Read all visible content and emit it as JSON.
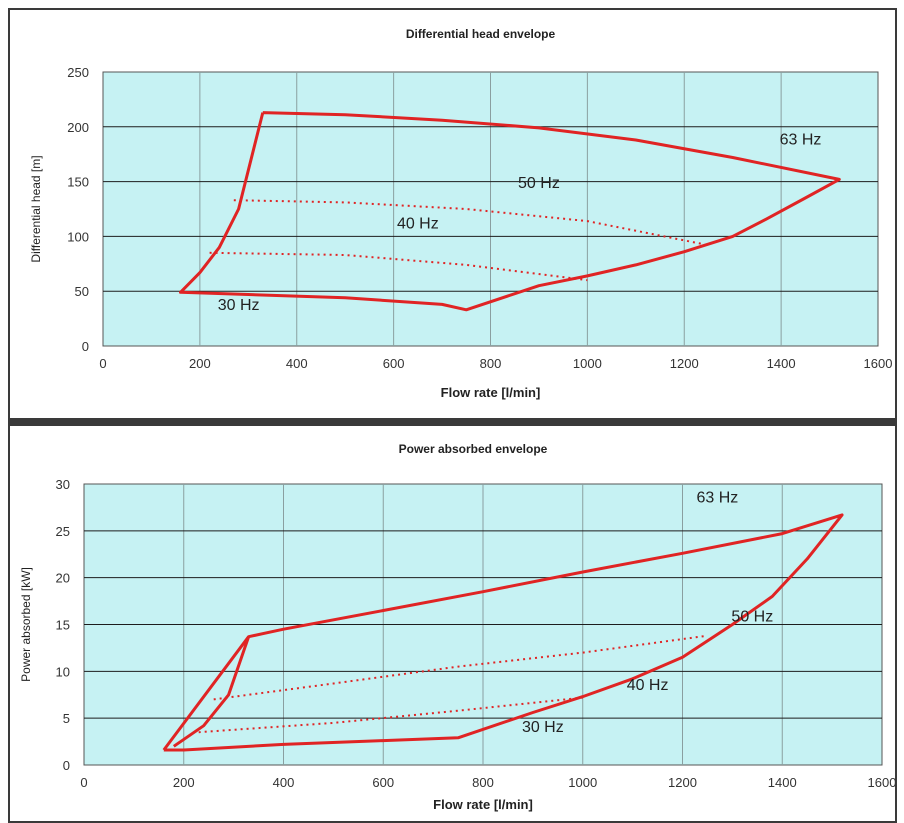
{
  "chart_data": [
    {
      "type": "line",
      "title": "Differential head envelope",
      "xlabel": "Flow rate [l/min]",
      "ylabel": "Differential head [m]",
      "xlim": [
        0,
        1600
      ],
      "ylim": [
        0,
        250
      ],
      "xticks": [
        0,
        200,
        400,
        600,
        800,
        1000,
        1200,
        1400,
        1600
      ],
      "yticks": [
        0,
        50,
        100,
        150,
        200,
        250
      ],
      "grid": true,
      "colors": {
        "background": "#c6f2f3",
        "envelope": "#e02424",
        "grid": "#8a9fa0"
      },
      "series": [
        {
          "style": "solid",
          "points": [
            [
              330,
              213
            ],
            [
              500,
              211
            ],
            [
              700,
              206
            ],
            [
              900,
              199
            ],
            [
              1100,
              188
            ],
            [
              1300,
              172
            ],
            [
              1520,
              152
            ],
            [
              1450,
              135
            ],
            [
              1370,
              116
            ],
            [
              1300,
              100
            ],
            [
              1200,
              86
            ],
            [
              1100,
              74
            ],
            [
              1000,
              64
            ],
            [
              900,
              55
            ],
            [
              750,
              33
            ],
            [
              700,
              38
            ],
            [
              500,
              44
            ],
            [
              300,
              47
            ],
            [
              160,
              49
            ],
            [
              200,
              67
            ],
            [
              240,
              90
            ],
            [
              280,
              125
            ],
            [
              330,
              213
            ]
          ]
        },
        {
          "style": "dotted",
          "points": [
            [
              270,
              133
            ],
            [
              500,
              131
            ],
            [
              750,
              125
            ],
            [
              1000,
              114
            ],
            [
              1250,
              92
            ]
          ]
        },
        {
          "style": "dotted",
          "points": [
            [
              220,
              85
            ],
            [
              500,
              83
            ],
            [
              750,
              74
            ],
            [
              1000,
              60
            ]
          ]
        }
      ],
      "annotations": [
        {
          "text": "63 Hz",
          "x": 1440,
          "y": 184
        },
        {
          "text": "50 Hz",
          "x": 900,
          "y": 144
        },
        {
          "text": "40 Hz",
          "x": 650,
          "y": 107
        },
        {
          "text": "30 Hz",
          "x": 280,
          "y": 33
        }
      ]
    },
    {
      "type": "line",
      "title": "Power absorbed envelope",
      "xlabel": "Flow rate [l/min]",
      "ylabel": "Power absorbed [kW]",
      "xlim": [
        0,
        1600
      ],
      "ylim": [
        0,
        30
      ],
      "xticks": [
        0,
        200,
        400,
        600,
        800,
        1000,
        1200,
        1400,
        1600
      ],
      "yticks": [
        0,
        5,
        10,
        15,
        20,
        25,
        30
      ],
      "grid": true,
      "colors": {
        "background": "#c6f2f3",
        "envelope": "#e02424",
        "grid": "#8a9fa0"
      },
      "series": [
        {
          "style": "solid",
          "points": [
            [
              160,
              1.6
            ],
            [
              330,
              13.7
            ],
            [
              400,
              14.5
            ],
            [
              600,
              16.5
            ],
            [
              800,
              18.5
            ],
            [
              1000,
              20.6
            ],
            [
              1200,
              22.6
            ],
            [
              1400,
              24.7
            ],
            [
              1520,
              26.7
            ],
            [
              1450,
              22
            ],
            [
              1380,
              18
            ],
            [
              1300,
              15
            ],
            [
              1200,
              11.5
            ],
            [
              1100,
              9.2
            ],
            [
              1000,
              7.3
            ],
            [
              900,
              5.6
            ],
            [
              750,
              2.9
            ],
            [
              600,
              2.6
            ],
            [
              400,
              2.2
            ],
            [
              200,
              1.6
            ],
            [
              160,
              1.6
            ]
          ]
        },
        {
          "style": "dotted",
          "points": [
            [
              260,
              7
            ],
            [
              500,
              8.7
            ],
            [
              750,
              10.5
            ],
            [
              1000,
              12
            ],
            [
              1250,
              13.8
            ]
          ]
        },
        {
          "style": "dotted",
          "points": [
            [
              230,
              3.5
            ],
            [
              500,
              4.5
            ],
            [
              750,
              5.8
            ],
            [
              1000,
              7.2
            ]
          ]
        },
        {
          "style": "solid",
          "points": [
            [
              180,
              2.0
            ],
            [
              240,
              4.2
            ],
            [
              290,
              7.5
            ],
            [
              330,
              13.7
            ]
          ]
        }
      ],
      "annotations": [
        {
          "text": "63 Hz",
          "x": 1270,
          "y": 28
        },
        {
          "text": "50 Hz",
          "x": 1340,
          "y": 15.3
        },
        {
          "text": "40 Hz",
          "x": 1130,
          "y": 8
        },
        {
          "text": "30 Hz",
          "x": 920,
          "y": 3.5
        }
      ]
    }
  ]
}
